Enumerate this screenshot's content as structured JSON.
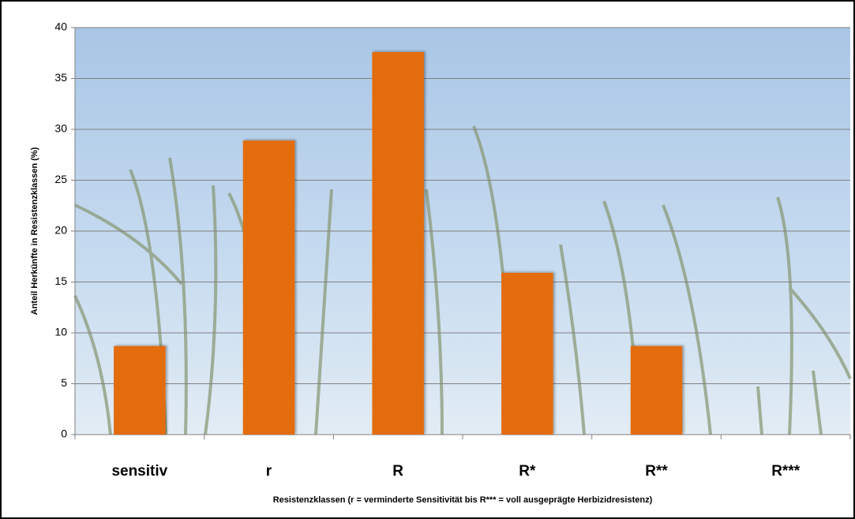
{
  "chart_data": {
    "type": "bar",
    "categories": [
      "sensitiv",
      "r",
      "R",
      "R*",
      "R**",
      "R***"
    ],
    "values": [
      8.7,
      28.9,
      37.6,
      15.9,
      8.7,
      0
    ],
    "color": "#e36c0a",
    "ylim": [
      0,
      40
    ],
    "yticks": [
      0,
      5,
      10,
      15,
      20,
      25,
      30,
      35,
      40
    ],
    "grid": true,
    "y_label": "Anteil Herkünfte in  Resistenzklassen (%)",
    "x_label": "Resistenzklassen (r = verminderte Sensitivität bis R*** = voll ausgeprägte Herbizidresistenz)"
  }
}
